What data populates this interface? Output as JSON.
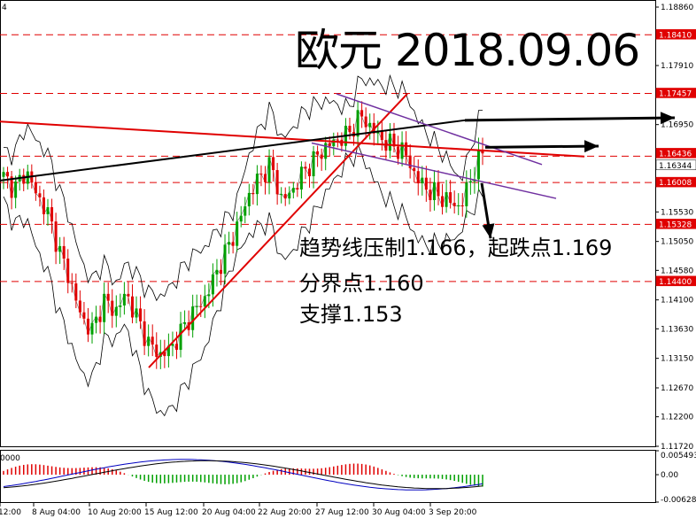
{
  "header": {
    "corner_label": "4",
    "title": "欧元 2018.09.06"
  },
  "annotations": [
    "趋势线压制1.166，起跌点1.169",
    "分界点1.160",
    "支撑1.153"
  ],
  "colors": {
    "bull": "#00a000",
    "bear": "#e00000",
    "level": "#e00000",
    "channel": "#7030a0",
    "trend": "#000000",
    "axis": "#000000"
  },
  "chart_data": [
    {
      "type": "candlestick",
      "title": "欧元 2018.09.06",
      "y_axis_ticks": [
        "1.18860",
        "1.17910",
        "1.16950",
        "1.15530",
        "1.15050",
        "1.14580",
        "1.14100",
        "1.13630",
        "1.13150",
        "1.12670",
        "1.12200",
        "1.11720"
      ],
      "ylim": [
        1.1172,
        1.1886
      ],
      "price_labels": [
        "1.18410",
        "1.17457",
        "1.16436",
        "1.16344",
        "1.16008",
        "1.15328",
        "1.14400"
      ],
      "levels": [
        1.1841,
        1.17457,
        1.16436,
        1.16008,
        1.15328,
        1.144
      ],
      "x_axis_labels": [
        "12:00",
        "8 Aug 04:00",
        "10 Aug 20:00",
        "15 Aug 12:00",
        "20 Aug 04:00",
        "22 Aug 20:00",
        "27 Aug 12:00",
        "30 Aug 04:00",
        "3 Sep 20:00"
      ],
      "close_series": [
        1.161,
        1.159,
        1.162,
        1.158,
        1.155,
        1.149,
        1.144,
        1.138,
        1.136,
        1.141,
        1.139,
        1.142,
        1.138,
        1.134,
        1.132,
        1.133,
        1.136,
        1.139,
        1.141,
        1.145,
        1.149,
        1.153,
        1.158,
        1.161,
        1.163,
        1.157,
        1.159,
        1.162,
        1.164,
        1.166,
        1.167,
        1.168,
        1.171,
        1.169,
        1.167,
        1.166,
        1.165,
        1.161,
        1.159,
        1.158,
        1.157,
        1.156,
        1.161,
        1.165
      ]
    },
    {
      "type": "macd",
      "y_axis_ticks": [
        "0.005493",
        "0.00",
        "-0.006287"
      ],
      "left_label": "0000",
      "ylim": [
        -0.006287,
        0.005493
      ]
    }
  ]
}
